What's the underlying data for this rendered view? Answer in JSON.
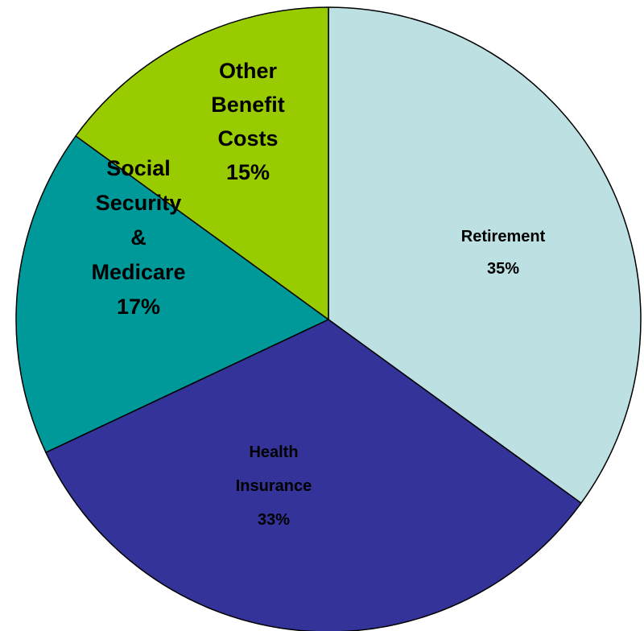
{
  "chart_data": {
    "type": "pie",
    "slices": [
      {
        "label": [
          "Retirement"
        ],
        "percent_text": "35%",
        "value": 35,
        "color": "#bde0e3"
      },
      {
        "label": [
          "Health",
          "Insurance"
        ],
        "percent_text": "33%",
        "value": 33,
        "color": "#333399"
      },
      {
        "label": [
          "Social",
          "Security",
          "&",
          "Medicare"
        ],
        "percent_text": "17%",
        "value": 17,
        "color": "#009999"
      },
      {
        "label": [
          "Other",
          "Benefit",
          "Costs"
        ],
        "percent_text": "15%",
        "value": 15,
        "color": "#99cc00"
      }
    ],
    "start_angle_deg": 0,
    "direction": "clockwise",
    "legend": "none"
  }
}
